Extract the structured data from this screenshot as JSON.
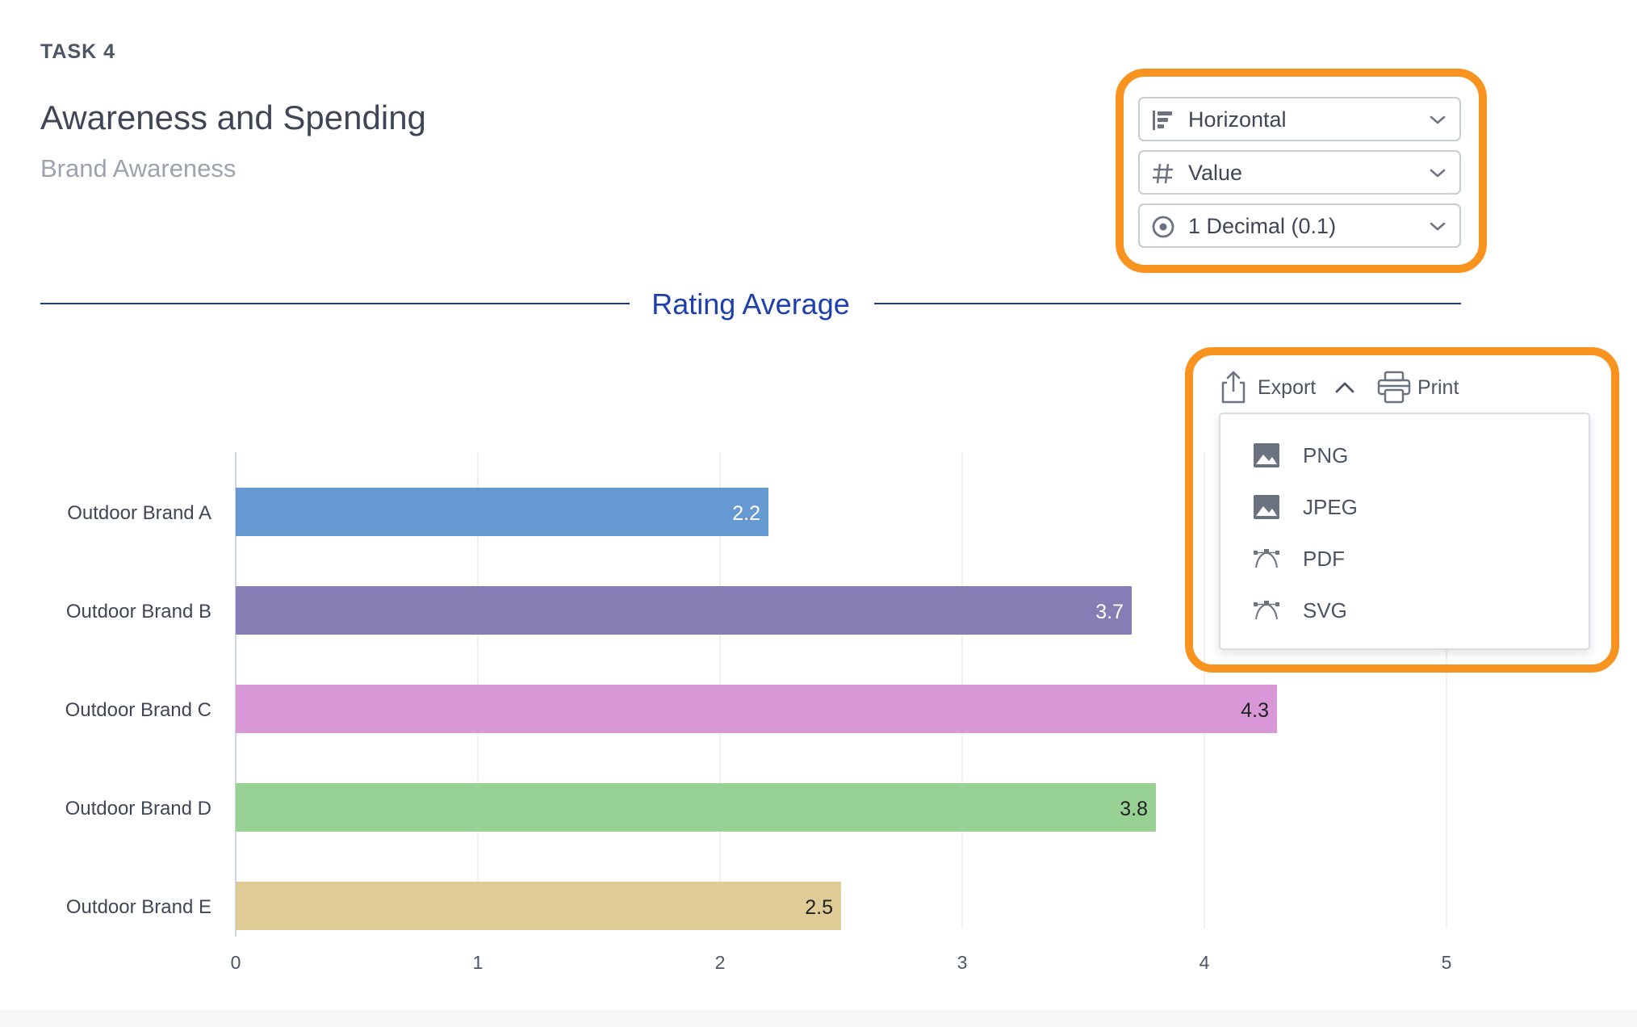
{
  "header": {
    "task": "TASK 4",
    "title": "Awareness and Spending",
    "subtitle": "Brand Awareness"
  },
  "controls": {
    "orientation": {
      "label": "Horizontal",
      "icon": "bar-chart-horizontal-icon"
    },
    "metric": {
      "label": "Value",
      "icon": "hash-icon"
    },
    "precision": {
      "label": "1 Decimal (0.1)",
      "icon": "radio-target-icon"
    },
    "highlight_color": "#f7931e"
  },
  "section": {
    "title": "Rating Average"
  },
  "toolbar": {
    "export_label": "Export",
    "print_label": "Print",
    "export_menu": [
      {
        "label": "PNG",
        "icon": "image-icon"
      },
      {
        "label": "JPEG",
        "icon": "image-icon"
      },
      {
        "label": "PDF",
        "icon": "vector-icon"
      },
      {
        "label": "SVG",
        "icon": "vector-icon"
      }
    ]
  },
  "chart_data": {
    "type": "bar",
    "orientation": "horizontal",
    "title": "Rating Average",
    "categories": [
      "Outdoor Brand A",
      "Outdoor Brand B",
      "Outdoor Brand C",
      "Outdoor Brand D",
      "Outdoor Brand E"
    ],
    "values": [
      2.2,
      3.7,
      4.3,
      3.8,
      2.5
    ],
    "value_labels": [
      "2.2",
      "3.7",
      "4.3",
      "3.8",
      "2.5"
    ],
    "colors": [
      "#6699d2",
      "#877db5",
      "#d898d8",
      "#97d194",
      "#dfcb95"
    ],
    "label_colors": [
      "#ffffff",
      "#ffffff",
      "#222222",
      "#222222",
      "#222222"
    ],
    "x_ticks": [
      "0",
      "1",
      "2",
      "3",
      "4",
      "5"
    ],
    "xlim": [
      0,
      5
    ],
    "grid": true
  }
}
